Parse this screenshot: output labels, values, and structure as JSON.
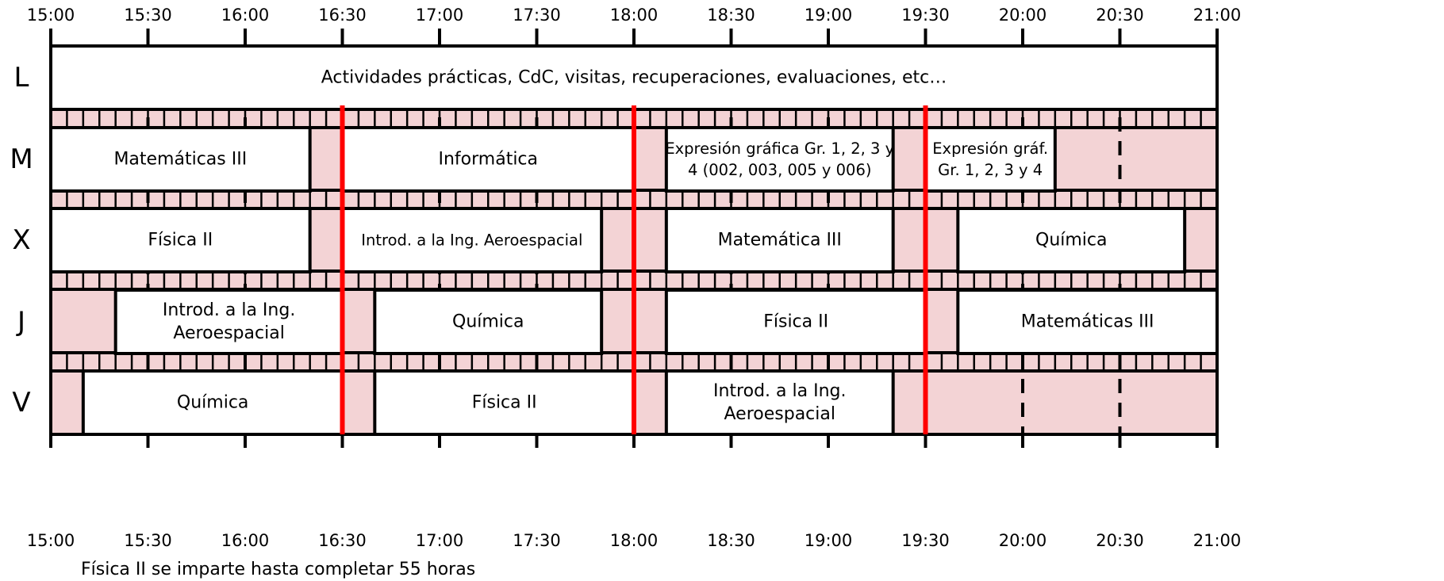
{
  "timeline": {
    "start": "15:00",
    "end": "21:00",
    "ticks": [
      "15:00",
      "15:30",
      "16:00",
      "16:30",
      "17:00",
      "17:30",
      "18:00",
      "18:30",
      "19:00",
      "19:30",
      "20:00",
      "20:30",
      "21:00"
    ]
  },
  "days": [
    {
      "id": "L",
      "label": "L"
    },
    {
      "id": "M",
      "label": "M"
    },
    {
      "id": "X",
      "label": "X"
    },
    {
      "id": "J",
      "label": "J"
    },
    {
      "id": "V",
      "label": "V"
    }
  ],
  "sessions": [
    {
      "day": "L",
      "start": "15:00",
      "end": "21:00",
      "lines": [
        "Actividades prácticas, CdC, visitas, recuperaciones, evaluaciones, etc…"
      ]
    },
    {
      "day": "M",
      "start": "15:00",
      "end": "16:20",
      "lines": [
        "Matemáticas III"
      ]
    },
    {
      "day": "M",
      "start": "16:30",
      "end": "18:00",
      "lines": [
        "Informática"
      ]
    },
    {
      "day": "M",
      "start": "18:10",
      "end": "19:20",
      "lines": [
        "Expresión gráfica Gr. 1, 2, 3 y",
        "4 (002, 003, 005 y 006)"
      ],
      "small": true
    },
    {
      "day": "M",
      "start": "19:30",
      "end": "20:10",
      "lines": [
        "Expresión gráf.",
        "Gr. 1, 2, 3 y 4"
      ],
      "small": true
    },
    {
      "day": "X",
      "start": "15:00",
      "end": "16:20",
      "lines": [
        "Física II"
      ]
    },
    {
      "day": "X",
      "start": "16:30",
      "end": "17:50",
      "lines": [
        "Introd. a la Ing. Aeroespacial"
      ],
      "small": true
    },
    {
      "day": "X",
      "start": "18:10",
      "end": "19:20",
      "lines": [
        "Matemática III"
      ]
    },
    {
      "day": "X",
      "start": "19:40",
      "end": "20:50",
      "lines": [
        "Química"
      ]
    },
    {
      "day": "J",
      "start": "15:20",
      "end": "16:30",
      "lines": [
        "Introd. a la Ing.",
        "Aeroespacial"
      ]
    },
    {
      "day": "J",
      "start": "16:40",
      "end": "17:50",
      "lines": [
        "Química"
      ]
    },
    {
      "day": "J",
      "start": "18:10",
      "end": "19:30",
      "lines": [
        "Física II"
      ]
    },
    {
      "day": "J",
      "start": "19:40",
      "end": "21:00",
      "lines": [
        "Matemáticas III"
      ]
    },
    {
      "day": "V",
      "start": "15:10",
      "end": "16:30",
      "lines": [
        "Química"
      ]
    },
    {
      "day": "V",
      "start": "16:40",
      "end": "18:00",
      "lines": [
        "Física II"
      ]
    },
    {
      "day": "V",
      "start": "18:10",
      "end": "19:20",
      "lines": [
        "Introd. a la Ing.",
        "Aeroespacial"
      ]
    }
  ],
  "red_lines": [
    "16:30",
    "18:00",
    "19:30"
  ],
  "colors": {
    "free_slot": "#f3d3d5",
    "grid": "#000000",
    "highlight_line": "#ff0000",
    "session_fill": "#ffffff"
  },
  "footnote": "Física II se imparte hasta completar 55 horas"
}
